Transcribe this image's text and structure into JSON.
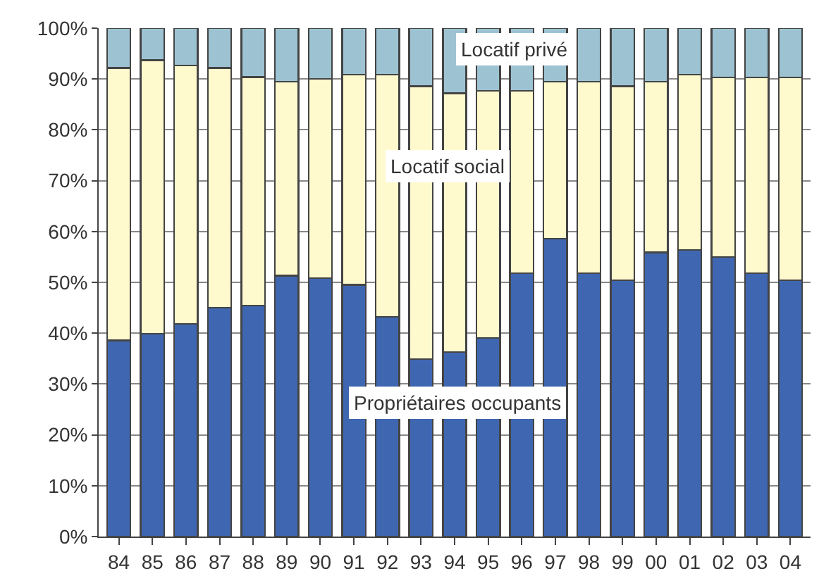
{
  "chart_data": {
    "type": "bar",
    "stacked": true,
    "categories": [
      "84",
      "85",
      "86",
      "87",
      "88",
      "89",
      "90",
      "91",
      "92",
      "93",
      "94",
      "95",
      "96",
      "97",
      "98",
      "99",
      "00",
      "01",
      "02",
      "03",
      "04"
    ],
    "series": [
      {
        "name": "Propriétaires occupants",
        "color": "#3f67b1",
        "values": [
          38.6,
          39.9,
          41.8,
          45.0,
          45.4,
          51.3,
          50.8,
          49.5,
          43.2,
          34.9,
          36.3,
          39.1,
          51.8,
          58.6,
          51.8,
          50.4,
          55.9,
          56.4,
          55.0,
          51.8,
          50.4
        ]
      },
      {
        "name": "Locatif social",
        "color": "#fffacd",
        "values": [
          53.6,
          53.8,
          50.9,
          47.2,
          45.0,
          38.2,
          39.2,
          41.4,
          47.7,
          53.7,
          50.9,
          48.6,
          35.9,
          30.9,
          37.7,
          38.2,
          33.6,
          34.5,
          35.3,
          38.5,
          39.9
        ]
      },
      {
        "name": "Locatif privé",
        "color": "#9dc3d3",
        "values": [
          7.8,
          6.3,
          7.3,
          7.8,
          9.6,
          10.5,
          10.0,
          9.1,
          9.1,
          11.4,
          12.8,
          12.3,
          12.3,
          10.5,
          10.5,
          11.4,
          10.5,
          9.1,
          9.7,
          9.7,
          9.7
        ]
      }
    ],
    "ylim": [
      0,
      100
    ],
    "yticks": [
      {
        "value": 0,
        "label": "0%"
      },
      {
        "value": 10,
        "label": "10%"
      },
      {
        "value": 20,
        "label": "20%"
      },
      {
        "value": 30,
        "label": "30%"
      },
      {
        "value": 40,
        "label": "40%"
      },
      {
        "value": 50,
        "label": "50%"
      },
      {
        "value": 60,
        "label": "60%"
      },
      {
        "value": 70,
        "label": "70%"
      },
      {
        "value": 80,
        "label": "80%"
      },
      {
        "value": 90,
        "label": "90%"
      },
      {
        "value": 100,
        "label": "100%"
      }
    ],
    "grid": "y",
    "legend": false
  }
}
